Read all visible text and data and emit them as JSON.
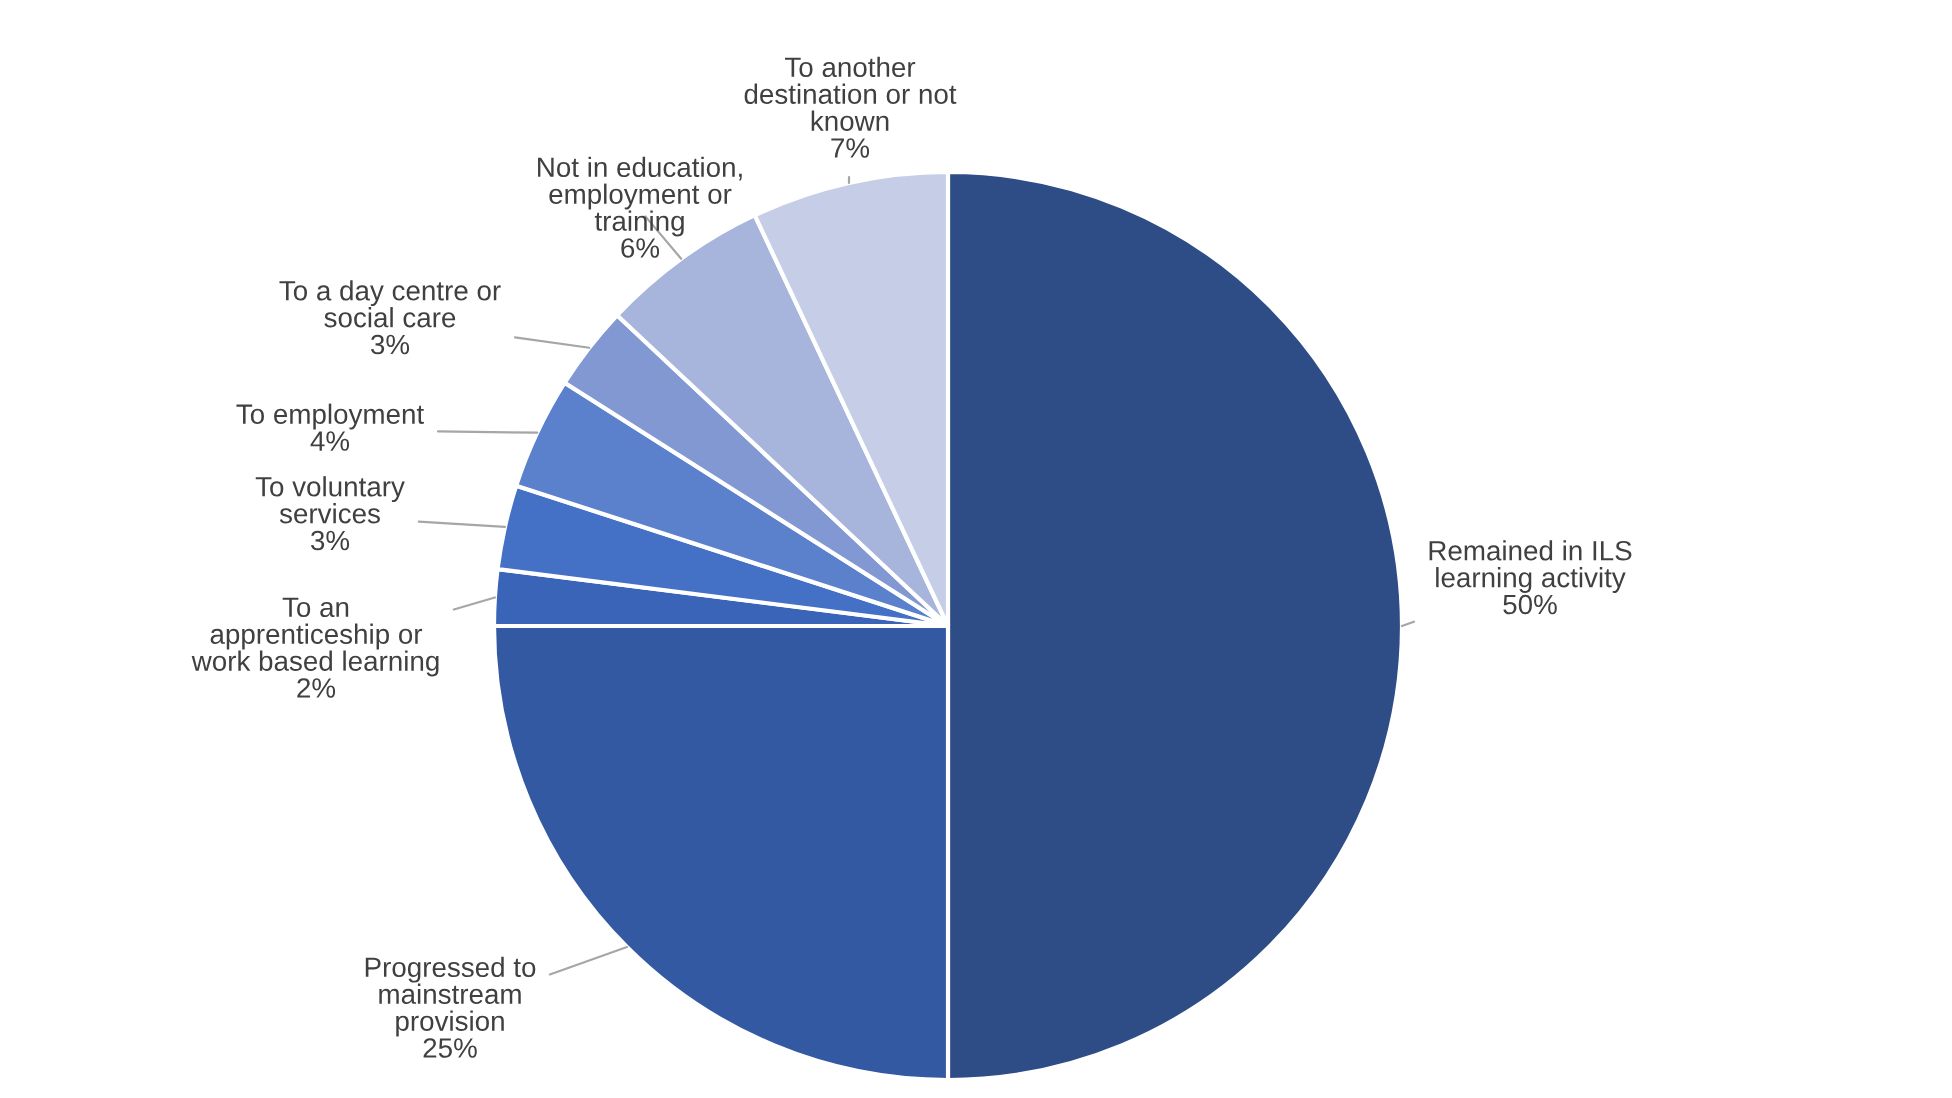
{
  "chart_data": {
    "type": "pie",
    "categories": [
      "Remained in ILS\nlearning activity",
      "Progressed to\nmainstream\nprovision",
      "To an\napprenticeship or\nwork based learning",
      "To voluntary\nservices",
      "To employment",
      "To a day centre or\nsocial care",
      "Not in education,\nemployment or\ntraining",
      "To another\ndestination or not\nknown"
    ],
    "values": [
      50,
      25,
      2,
      3,
      4,
      3,
      6,
      7
    ],
    "colors": [
      "#2e4d87",
      "#3459a3",
      "#3a64b8",
      "#4471c6",
      "#5b80cc",
      "#8198d2",
      "#a7b5dc",
      "#c6cee7"
    ],
    "value_labels": [
      "50%",
      "25%",
      "2%",
      "3%",
      "4%",
      "3%",
      "6%",
      "7%"
    ]
  }
}
